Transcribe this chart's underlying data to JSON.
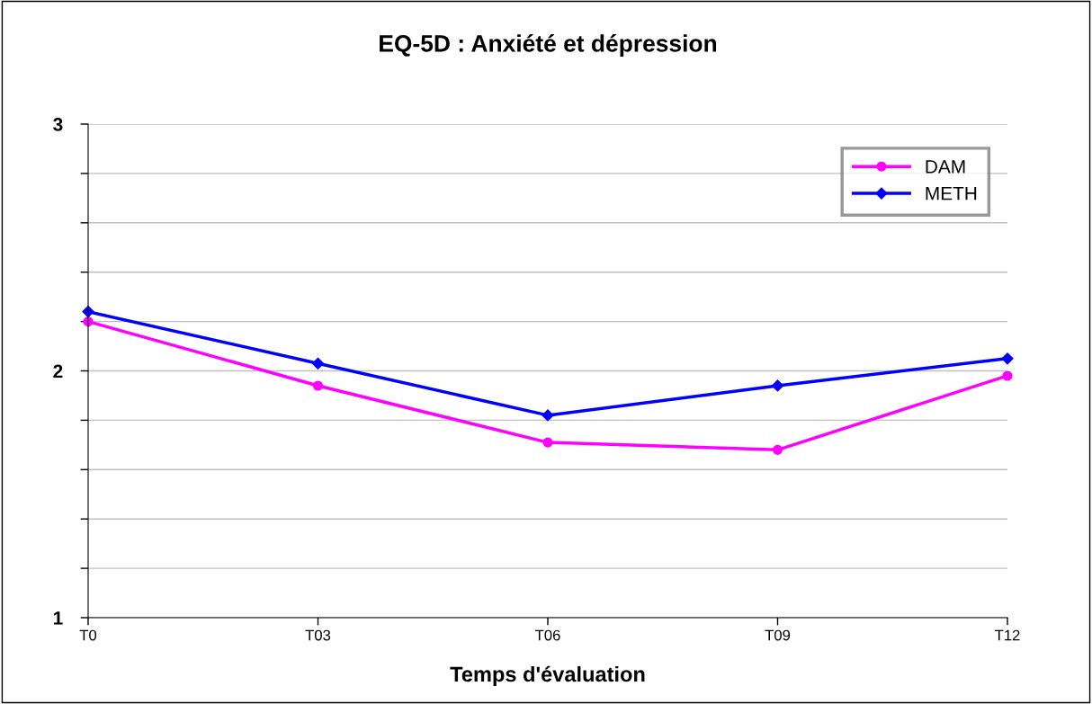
{
  "chart_data": {
    "type": "line",
    "title": "EQ-5D : Anxiété et dépression",
    "xlabel": "Temps d'évaluation",
    "categories": [
      "T0",
      "T03",
      "T06",
      "T09",
      "T12"
    ],
    "series": [
      {
        "name": "DAM",
        "color": "#ff00ff",
        "marker": "circle",
        "values": [
          2.2,
          1.94,
          1.71,
          1.68,
          1.98
        ]
      },
      {
        "name": "METH",
        "color": "#0000ff",
        "marker": "diamond",
        "values": [
          2.24,
          2.03,
          1.82,
          1.94,
          2.05
        ]
      }
    ],
    "ylim": [
      1,
      3
    ],
    "yticks": [
      1,
      {
        "value": 1.2,
        "label": null
      },
      {
        "value": 1.4,
        "label": null
      },
      {
        "value": 1.6,
        "label": null
      },
      {
        "value": 1.8,
        "label": null
      },
      2,
      {
        "value": 2.2,
        "label": null
      },
      {
        "value": 2.4,
        "label": null
      },
      {
        "value": 2.6,
        "label": null
      },
      {
        "value": 2.8,
        "label": null
      },
      3
    ],
    "grid": "y",
    "legend": "top right",
    "line_style": "solid"
  }
}
